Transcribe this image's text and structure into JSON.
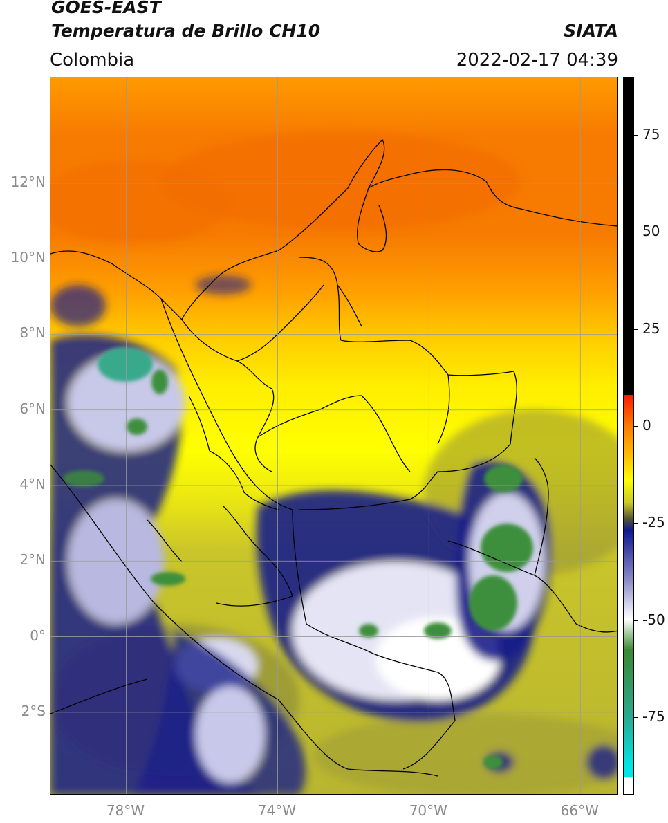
{
  "header": {
    "title_line1": "GOES-EAST",
    "title_line2": "Temperatura de Brillo CH10",
    "region": "Colombia",
    "organization": "SIATA",
    "timestamp": "2022-02-17 04:39"
  },
  "map": {
    "lon_range": [
      -80,
      -65
    ],
    "lat_range": [
      -4.2,
      14.8
    ],
    "lat_ticks": [
      {
        "value": 12,
        "label": "12°N"
      },
      {
        "value": 10,
        "label": "10°N"
      },
      {
        "value": 8,
        "label": "8°N"
      },
      {
        "value": 6,
        "label": "6°N"
      },
      {
        "value": 4,
        "label": "4°N"
      },
      {
        "value": 2,
        "label": "2°N"
      },
      {
        "value": 0,
        "label": "0°"
      },
      {
        "value": -2,
        "label": "2°S"
      }
    ],
    "lon_ticks": [
      {
        "value": -78,
        "label": "78°W"
      },
      {
        "value": -74,
        "label": "74°W"
      },
      {
        "value": -70,
        "label": "70°W"
      },
      {
        "value": -66,
        "label": "66°W"
      }
    ],
    "colors": {
      "grid": "#9a9a9a",
      "border": "#000000",
      "warm_orange": "#f77b00",
      "orange": "#ff9f00",
      "yellow": "#ffee00",
      "olive": "#c9c52a",
      "dark_olive": "#8e8c3a",
      "navy": "#1a1f8a",
      "white_cloud": "#e8e8f0",
      "green": "#3c8f3c",
      "teal": "#37a98a"
    }
  },
  "colorbar": {
    "range": [
      -95,
      90
    ],
    "ticks": [
      {
        "value": 75,
        "label": "75"
      },
      {
        "value": 50,
        "label": "50"
      },
      {
        "value": 25,
        "label": "25"
      },
      {
        "value": 0,
        "label": "0"
      },
      {
        "value": -25,
        "label": "-25"
      },
      {
        "value": -50,
        "label": "-50"
      },
      {
        "value": -75,
        "label": "-75"
      }
    ],
    "stops": [
      {
        "value": 90,
        "color": "#000000"
      },
      {
        "value": 8,
        "color": "#000000"
      },
      {
        "value": 7.9,
        "color": "#ff1a00"
      },
      {
        "value": 0,
        "color": "#ff7a00"
      },
      {
        "value": -8,
        "color": "#ffc000"
      },
      {
        "value": -14,
        "color": "#ffff00"
      },
      {
        "value": -20,
        "color": "#c8c82a"
      },
      {
        "value": -24,
        "color": "#555533"
      },
      {
        "value": -27,
        "color": "#101890"
      },
      {
        "value": -40,
        "color": "#8c8cc8"
      },
      {
        "value": -50,
        "color": "#ffffff"
      },
      {
        "value": -58,
        "color": "#3a8a30"
      },
      {
        "value": -75,
        "color": "#2aa890"
      },
      {
        "value": -88,
        "color": "#00e6e6"
      },
      {
        "value": -90.9,
        "color": "#00e6e6"
      },
      {
        "value": -91,
        "color": "#ffffff"
      },
      {
        "value": -95,
        "color": "#ffffff"
      }
    ]
  }
}
